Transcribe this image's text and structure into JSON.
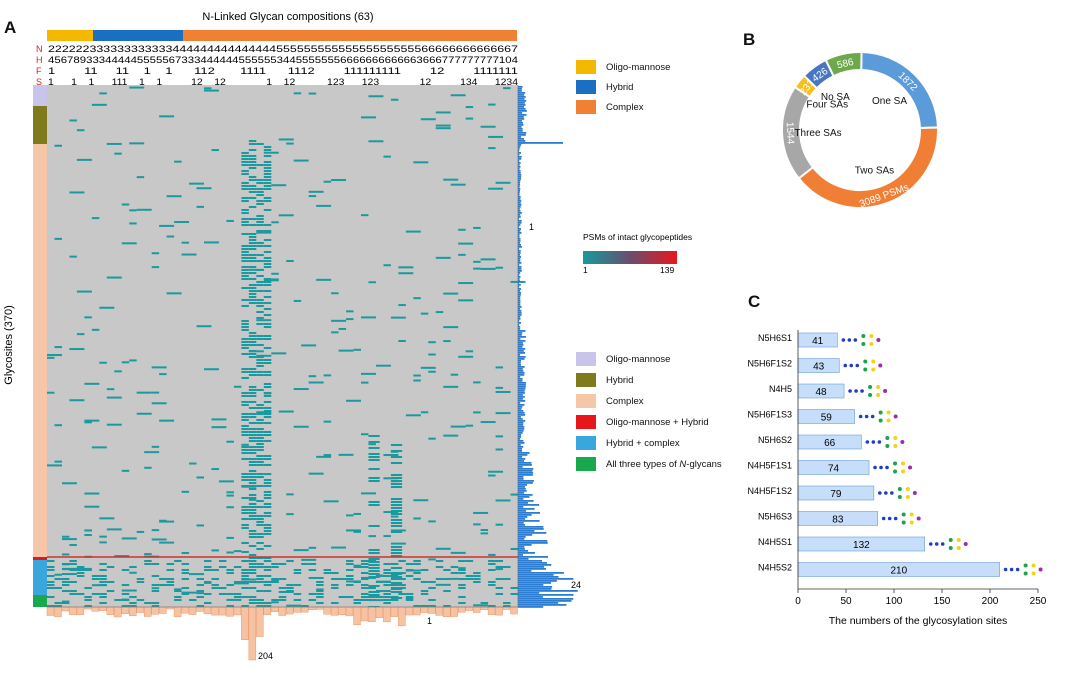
{
  "panel_labels": {
    "a": "A",
    "b": "B",
    "c": "C"
  },
  "colors": {
    "oligo": "#f5b800",
    "hybrid": "#1a6fc1",
    "complex": "#f08034",
    "row_oligo": "#c9c5ea",
    "row_hybrid": "#7f7a1e",
    "row_complex": "#f6c6a8",
    "row_oh": "#e8161b",
    "row_hc": "#39a6de",
    "row_all": "#18a84e",
    "heat_bg": "#c8c8c8",
    "heat_cell": "#1a9a9e",
    "hist_right": "#2c7dd2",
    "hist_bottom": "#f6c2a2",
    "pie_blue": "#5b9bd9",
    "pie_orange": "#f07f35",
    "pie_gray": "#a7a7a7",
    "pie_yellow": "#f6c020",
    "pie_darkblue": "#4976c2",
    "pie_green": "#6ea84a"
  },
  "panel_a": {
    "title": "N-Linked Glycan compositions (63)",
    "row_labels": [
      "N",
      "H",
      "F",
      "S"
    ],
    "row_N": "22222233333333333344444444444444455555555555555555555566666666666667",
    "row_H": "45678933344444555556733344444455555534455555556666666666663666777777777104",
    "row_F": "1        11     11    1    1      112       1111      1112        111111111        12        1111111",
    "row_S": "1      1    1      111    1    1          12    12              1    12           123      123              12          134      1234",
    "y_axis_label": "Glycosites (370)",
    "top_legend": [
      "Oligo-mannose",
      "Hybrid",
      "Complex"
    ],
    "colorbar_title": "PSMs of intact glycopeptides",
    "colorbar_min": "1",
    "colorbar_max": "139",
    "right_hist_min": "1",
    "right_hist_max": "24",
    "bottom_hist_min": "1",
    "bottom_hist_max": "204",
    "row_legend": [
      "Oligo-mannose",
      "Hybrid",
      "Complex",
      "Oligo-mannose + Hybrid",
      "Hybrid + complex",
      "All three types of "
    ],
    "row_legend_italic": "N",
    "row_legend_tail": "-glycans"
  },
  "chart_data": [
    {
      "type": "pie",
      "title": "",
      "slices": [
        {
          "name": "One SA",
          "value": 1872
        },
        {
          "name": "Two SAs",
          "value": 3089,
          "label": "3089 PSMs"
        },
        {
          "name": "Three SAs",
          "value": 1544
        },
        {
          "name": "Four SAs",
          "value": 231
        },
        {
          "name": "No SA",
          "value": 426
        },
        {
          "name": "",
          "value": 586
        }
      ]
    },
    {
      "type": "bar",
      "orientation": "horizontal",
      "categories": [
        "N5H6S1",
        "N5H6F1S2",
        "N4H5",
        "N5H6F1S3",
        "N5H6S2",
        "N4H5F1S1",
        "N4H5F1S2",
        "N5H6S3",
        "N4H5S1",
        "N4H5S2"
      ],
      "values": [
        41,
        43,
        48,
        59,
        66,
        74,
        79,
        83,
        132,
        210
      ],
      "xlabel": "The numbers of the glycosylation sites",
      "xlim": [
        0,
        250
      ],
      "xticks": [
        "0",
        "50",
        "100",
        "150",
        "200",
        "250"
      ]
    }
  ]
}
